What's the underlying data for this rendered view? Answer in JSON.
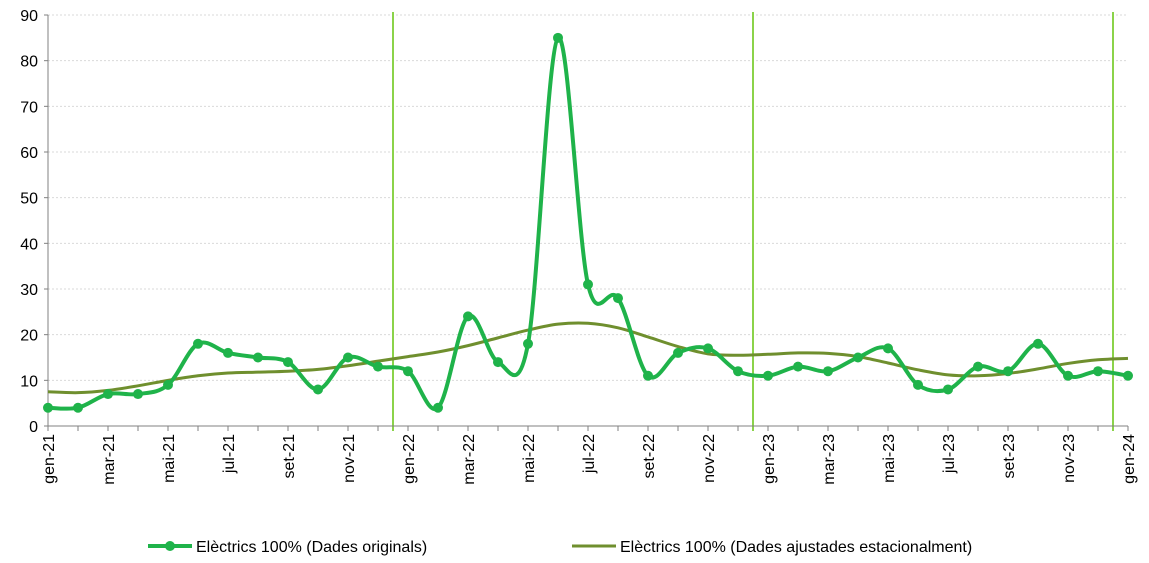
{
  "chart_data": {
    "type": "line",
    "x": [
      "gen-21",
      "feb-21",
      "mar-21",
      "abr-21",
      "mai-21",
      "jun-21",
      "jul-21",
      "ago-21",
      "set-21",
      "oct-21",
      "nov-21",
      "des-21",
      "gen-22",
      "feb-22",
      "mar-22",
      "abr-22",
      "mai-22",
      "jun-22",
      "jul-22",
      "ago-22",
      "set-22",
      "oct-22",
      "nov-22",
      "des-22",
      "gen-23",
      "feb-23",
      "mar-23",
      "abr-23",
      "mai-23",
      "jun-23",
      "jul-23",
      "ago-23",
      "set-23",
      "oct-23",
      "nov-23",
      "des-23",
      "gen-24"
    ],
    "x_tick_labels": [
      "gen-21",
      "mar-21",
      "mai-21",
      "jul-21",
      "set-21",
      "nov-21",
      "gen-22",
      "mar-22",
      "mai-22",
      "jul-22",
      "set-22",
      "nov-22",
      "gen-23",
      "mar-23",
      "mai-23",
      "jul-23",
      "set-23",
      "nov-23",
      "gen-24"
    ],
    "y_tick_labels": [
      "0",
      "10",
      "20",
      "30",
      "40",
      "50",
      "60",
      "70",
      "80",
      "90"
    ],
    "ylim": [
      0,
      90
    ],
    "grid": true,
    "legend_position": "bottom",
    "series": [
      {
        "name": "Elèctrics 100% (Dades originals)",
        "color": "#1fb34a",
        "markers": true,
        "values": [
          4,
          4,
          7,
          7,
          9,
          18,
          16,
          15,
          14,
          8,
          15,
          13,
          12,
          4,
          24,
          14,
          18,
          85,
          31,
          28,
          11,
          16,
          17,
          12,
          11,
          13,
          12,
          15,
          17,
          9,
          8,
          13,
          12,
          18,
          11,
          12,
          11
        ]
      },
      {
        "name": "Elèctrics 100% (Dades ajustades estacionalment)",
        "color": "#6f8f2e",
        "markers": false,
        "values": [
          7.5,
          7.3,
          7.8,
          8.8,
          10,
          11,
          11.6,
          11.8,
          12,
          12.4,
          13.2,
          14.2,
          15.2,
          16.2,
          17.6,
          19.3,
          21,
          22.3,
          22.5,
          21.5,
          19.5,
          17.4,
          15.8,
          15.5,
          15.7,
          16,
          15.9,
          15.2,
          13.8,
          12.3,
          11.2,
          11,
          11.5,
          12.5,
          13.7,
          14.5,
          14.8
        ]
      }
    ],
    "separators": {
      "color": "#8bd34a",
      "after_x": [
        "des-21",
        "des-22",
        "des-23"
      ]
    }
  }
}
